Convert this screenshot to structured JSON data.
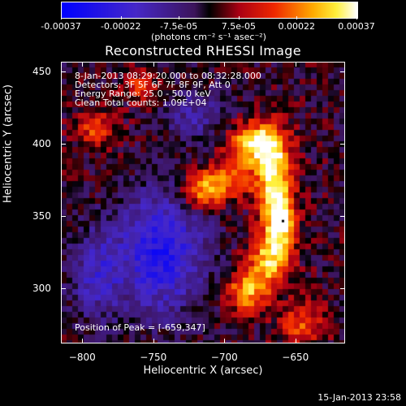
{
  "colorbar": {
    "tick_labels": [
      "-0.00037",
      "-0.00022",
      "-7.5e-05",
      "7.5e-05",
      "0.00022",
      "0.00037"
    ],
    "tick_values": [
      -0.00037,
      -0.00022,
      -7.5e-05,
      7.5e-05,
      0.00022,
      0.00037
    ],
    "units": "(photons cm⁻² s⁻¹ asec⁻²)"
  },
  "chart_data": {
    "type": "heatmap",
    "title": "Reconstructed RHESSI Image",
    "xlabel": "Heliocentric X (arcsec)",
    "ylabel": "Heliocentric Y (arcsec)",
    "xlim": [
      -815,
      -615
    ],
    "ylim": [
      262,
      457
    ],
    "x_ticks": [
      -800,
      -750,
      -700,
      -650
    ],
    "y_ticks": [
      300,
      350,
      400,
      450
    ],
    "x_tick_labels": [
      "−800",
      "−750",
      "−700",
      "−650"
    ],
    "y_tick_labels": [
      "300",
      "350",
      "400",
      "450"
    ],
    "value_range": [
      -0.00037,
      0.00037
    ],
    "peak_position": [
      -659,
      347
    ],
    "annotations": {
      "line1": "8-Jan-2013 08:29:20.000 to 08:32:28.000",
      "line2": "Detectors: 3F 5F 6F 7F 8F 9F, Att 0",
      "line3": "Energy Range: 25.0 - 50.0 keV",
      "line4": "Clean     Total counts: 1.09E+04",
      "peak": "Position of Peak = [-659,347]"
    }
  },
  "footer": {
    "timestamp": "15-Jan-2013 23:58"
  },
  "colors": {
    "background": "#000000",
    "foreground": "#ffffff"
  }
}
